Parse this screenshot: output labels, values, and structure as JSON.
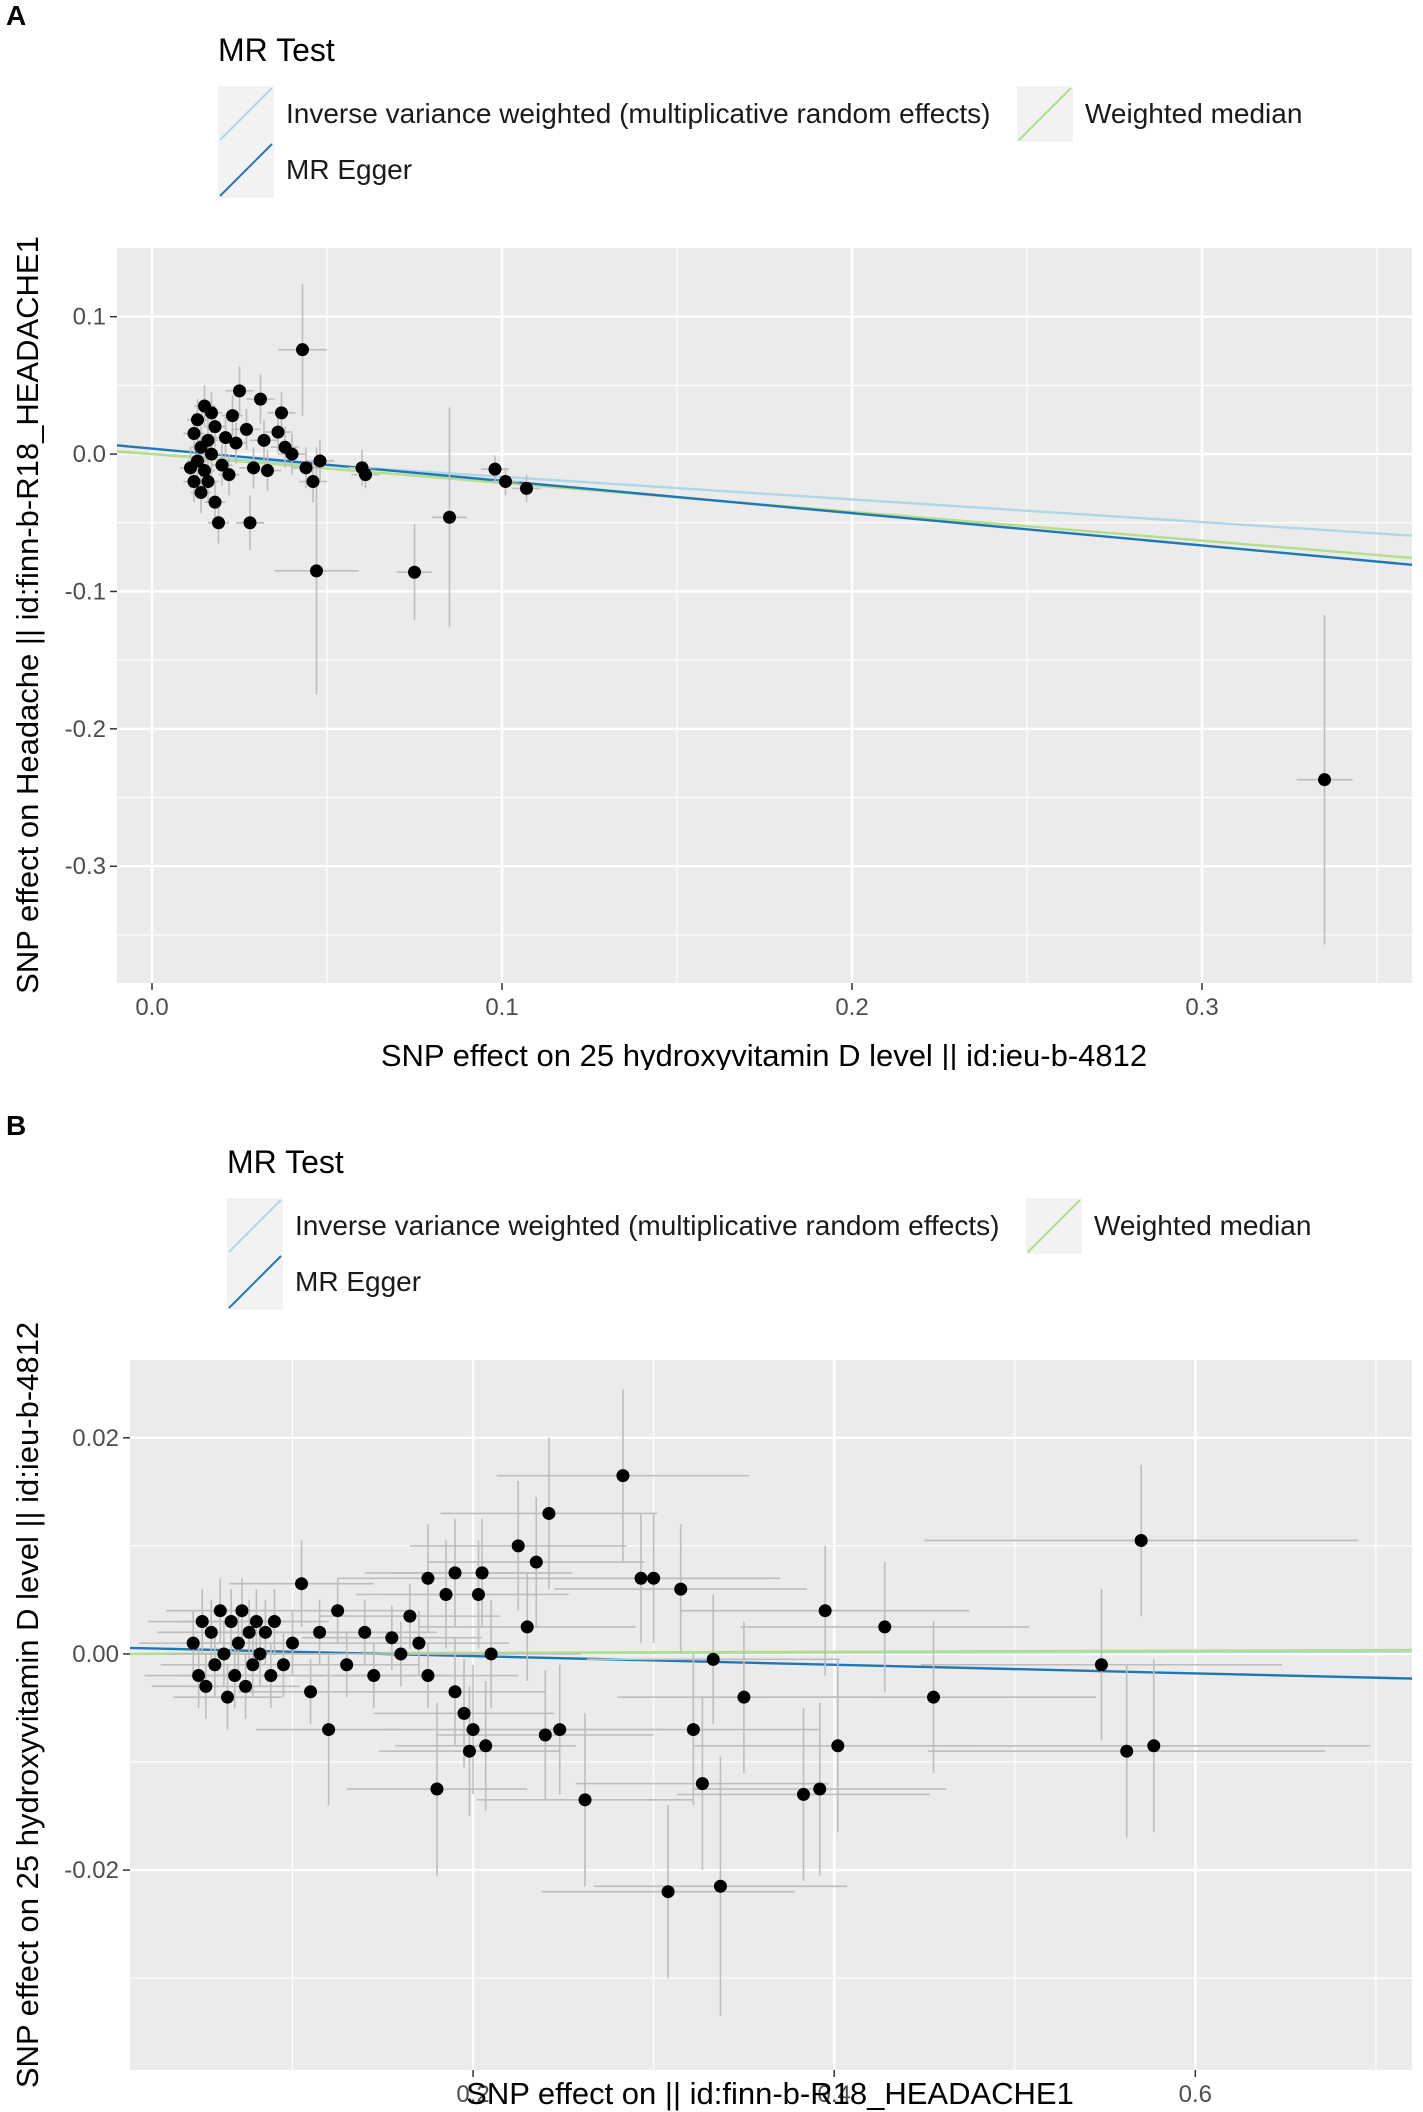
{
  "chart_data": [
    {
      "panel": "A",
      "type": "scatter",
      "legend_title": "MR Test",
      "legend": [
        {
          "label": "Inverse variance weighted (multiplicative random effects)",
          "color": "#add8e6"
        },
        {
          "label": "Weighted median",
          "color": "#b2df8a"
        },
        {
          "label": "MR Egger",
          "color": "#1f78b4"
        }
      ],
      "xlabel": "SNP effect on 25 hydroxyvitamin D level || id:ieu-b-4812",
      "ylabel": "SNP effect on Headache || id:finn-b-R18_HEADACHE1",
      "xlim": [
        -0.01,
        0.36
      ],
      "ylim": [
        -0.385,
        0.15
      ],
      "xticks": [
        0.0,
        0.1,
        0.2,
        0.3
      ],
      "xtick_labels": [
        "0.0",
        "0.1",
        "0.2",
        "0.3"
      ],
      "yticks": [
        0.1,
        0.0,
        -0.1,
        -0.2,
        -0.3
      ],
      "ytick_labels": [
        "0.1",
        "0.0",
        "-0.1",
        "-0.2",
        "-0.3"
      ],
      "lines": [
        {
          "name": "Inverse variance weighted (multiplicative random effects)",
          "intercept": 0.0,
          "slope": -0.165,
          "color": "#add8e6"
        },
        {
          "name": "Weighted median",
          "intercept": 0.0,
          "slope": -0.21,
          "color": "#b2df8a"
        },
        {
          "name": "MR Egger",
          "intercept": 0.004,
          "slope": -0.235,
          "color": "#1f78b4"
        }
      ],
      "points": [
        {
          "x": 0.011,
          "y": -0.01,
          "xe": 0.003,
          "ye": 0.015
        },
        {
          "x": 0.012,
          "y": -0.02,
          "xe": 0.003,
          "ye": 0.015
        },
        {
          "x": 0.012,
          "y": 0.015,
          "xe": 0.003,
          "ye": 0.015
        },
        {
          "x": 0.013,
          "y": -0.005,
          "xe": 0.003,
          "ye": 0.015
        },
        {
          "x": 0.013,
          "y": 0.025,
          "xe": 0.003,
          "ye": 0.015
        },
        {
          "x": 0.014,
          "y": 0.005,
          "xe": 0.003,
          "ye": 0.015
        },
        {
          "x": 0.014,
          "y": -0.028,
          "xe": 0.003,
          "ye": 0.015
        },
        {
          "x": 0.015,
          "y": 0.035,
          "xe": 0.003,
          "ye": 0.015
        },
        {
          "x": 0.015,
          "y": -0.012,
          "xe": 0.003,
          "ye": 0.015
        },
        {
          "x": 0.016,
          "y": 0.01,
          "xe": 0.003,
          "ye": 0.015
        },
        {
          "x": 0.016,
          "y": -0.02,
          "xe": 0.003,
          "ye": 0.015
        },
        {
          "x": 0.017,
          "y": 0.03,
          "xe": 0.003,
          "ye": 0.015
        },
        {
          "x": 0.017,
          "y": 0.0,
          "xe": 0.003,
          "ye": 0.015
        },
        {
          "x": 0.018,
          "y": -0.035,
          "xe": 0.003,
          "ye": 0.015
        },
        {
          "x": 0.018,
          "y": 0.02,
          "xe": 0.003,
          "ye": 0.015
        },
        {
          "x": 0.019,
          "y": -0.05,
          "xe": 0.003,
          "ye": 0.015
        },
        {
          "x": 0.02,
          "y": -0.008,
          "xe": 0.003,
          "ye": 0.015
        },
        {
          "x": 0.021,
          "y": 0.012,
          "xe": 0.003,
          "ye": 0.015
        },
        {
          "x": 0.022,
          "y": -0.015,
          "xe": 0.003,
          "ye": 0.015
        },
        {
          "x": 0.023,
          "y": 0.028,
          "xe": 0.003,
          "ye": 0.015
        },
        {
          "x": 0.024,
          "y": 0.008,
          "xe": 0.003,
          "ye": 0.015
        },
        {
          "x": 0.025,
          "y": 0.046,
          "xe": 0.004,
          "ye": 0.018
        },
        {
          "x": 0.027,
          "y": 0.018,
          "xe": 0.004,
          "ye": 0.015
        },
        {
          "x": 0.028,
          "y": -0.05,
          "xe": 0.004,
          "ye": 0.02
        },
        {
          "x": 0.029,
          "y": -0.01,
          "xe": 0.004,
          "ye": 0.015
        },
        {
          "x": 0.031,
          "y": 0.04,
          "xe": 0.004,
          "ye": 0.018
        },
        {
          "x": 0.032,
          "y": 0.01,
          "xe": 0.004,
          "ye": 0.015
        },
        {
          "x": 0.033,
          "y": -0.012,
          "xe": 0.004,
          "ye": 0.015
        },
        {
          "x": 0.036,
          "y": 0.016,
          "xe": 0.004,
          "ye": 0.015
        },
        {
          "x": 0.037,
          "y": 0.03,
          "xe": 0.004,
          "ye": 0.015
        },
        {
          "x": 0.038,
          "y": 0.005,
          "xe": 0.004,
          "ye": 0.015
        },
        {
          "x": 0.04,
          "y": 0.0,
          "xe": 0.004,
          "ye": 0.015
        },
        {
          "x": 0.043,
          "y": 0.076,
          "xe": 0.007,
          "ye": 0.048
        },
        {
          "x": 0.044,
          "y": -0.01,
          "xe": 0.004,
          "ye": 0.015
        },
        {
          "x": 0.046,
          "y": -0.02,
          "xe": 0.004,
          "ye": 0.015
        },
        {
          "x": 0.047,
          "y": -0.085,
          "xe": 0.012,
          "ye": 0.09
        },
        {
          "x": 0.048,
          "y": -0.005,
          "xe": 0.004,
          "ye": 0.015
        },
        {
          "x": 0.06,
          "y": -0.01,
          "xe": 0.004,
          "ye": 0.013
        },
        {
          "x": 0.061,
          "y": -0.015,
          "xe": 0.004,
          "ye": 0.01
        },
        {
          "x": 0.075,
          "y": -0.086,
          "xe": 0.005,
          "ye": 0.035
        },
        {
          "x": 0.085,
          "y": -0.046,
          "xe": 0.005,
          "ye": 0.08
        },
        {
          "x": 0.098,
          "y": -0.011,
          "xe": 0.004,
          "ye": 0.01
        },
        {
          "x": 0.101,
          "y": -0.02,
          "xe": 0.004,
          "ye": 0.01
        },
        {
          "x": 0.107,
          "y": -0.025,
          "xe": 0.004,
          "ye": 0.01
        },
        {
          "x": 0.335,
          "y": -0.237,
          "xe": 0.008,
          "ye": 0.12
        }
      ]
    },
    {
      "panel": "B",
      "type": "scatter",
      "legend_title": "MR Test",
      "legend": [
        {
          "label": "Inverse variance weighted (multiplicative random effects)",
          "color": "#add8e6"
        },
        {
          "label": "Weighted median",
          "color": "#b2df8a"
        },
        {
          "label": "MR Egger",
          "color": "#1f78b4"
        }
      ],
      "xlabel": "SNP effect on  || id:finn-b-R18_HEADACHE1",
      "ylabel": "SNP effect on 25 hydroxyvitamin D level || id:ieu-b-4812",
      "xlim": [
        0.01,
        0.72
      ],
      "ylim": [
        -0.0385,
        0.0272
      ],
      "xticks": [
        0.2,
        0.4,
        0.6
      ],
      "xtick_labels": [
        "0.2",
        "0.4",
        "0.6"
      ],
      "yticks": [
        0.02,
        0.0,
        -0.02
      ],
      "ytick_labels": [
        "0.02",
        "0.00",
        "-0.02"
      ],
      "lines": [
        {
          "name": "Inverse variance weighted (multiplicative random effects)",
          "intercept": 0.0,
          "slope": 0.0003,
          "color": "#add8e6"
        },
        {
          "name": "Weighted median",
          "intercept": 0.0,
          "slope": 0.0005,
          "color": "#b2df8a"
        },
        {
          "name": "MR Egger",
          "intercept": 0.0006,
          "slope": -0.004,
          "color": "#1f78b4"
        }
      ],
      "points": [
        {
          "x": 0.045,
          "y": 0.001,
          "xe": 0.03,
          "ye": 0.003
        },
        {
          "x": 0.048,
          "y": -0.002,
          "xe": 0.03,
          "ye": 0.003
        },
        {
          "x": 0.05,
          "y": 0.003,
          "xe": 0.03,
          "ye": 0.003
        },
        {
          "x": 0.052,
          "y": -0.003,
          "xe": 0.03,
          "ye": 0.003
        },
        {
          "x": 0.055,
          "y": 0.002,
          "xe": 0.03,
          "ye": 0.003
        },
        {
          "x": 0.057,
          "y": -0.001,
          "xe": 0.03,
          "ye": 0.003
        },
        {
          "x": 0.06,
          "y": 0.004,
          "xe": 0.03,
          "ye": 0.003
        },
        {
          "x": 0.062,
          "y": 0.0,
          "xe": 0.03,
          "ye": 0.003
        },
        {
          "x": 0.064,
          "y": -0.004,
          "xe": 0.03,
          "ye": 0.003
        },
        {
          "x": 0.066,
          "y": 0.003,
          "xe": 0.03,
          "ye": 0.003
        },
        {
          "x": 0.068,
          "y": -0.002,
          "xe": 0.03,
          "ye": 0.003
        },
        {
          "x": 0.07,
          "y": 0.001,
          "xe": 0.03,
          "ye": 0.003
        },
        {
          "x": 0.072,
          "y": 0.004,
          "xe": 0.03,
          "ye": 0.003
        },
        {
          "x": 0.074,
          "y": -0.003,
          "xe": 0.03,
          "ye": 0.003
        },
        {
          "x": 0.076,
          "y": 0.002,
          "xe": 0.03,
          "ye": 0.003
        },
        {
          "x": 0.078,
          "y": -0.001,
          "xe": 0.03,
          "ye": 0.003
        },
        {
          "x": 0.08,
          "y": 0.003,
          "xe": 0.03,
          "ye": 0.003
        },
        {
          "x": 0.082,
          "y": 0.0,
          "xe": 0.03,
          "ye": 0.003
        },
        {
          "x": 0.085,
          "y": 0.002,
          "xe": 0.03,
          "ye": 0.003
        },
        {
          "x": 0.088,
          "y": -0.002,
          "xe": 0.03,
          "ye": 0.003
        },
        {
          "x": 0.09,
          "y": 0.003,
          "xe": 0.03,
          "ye": 0.003
        },
        {
          "x": 0.095,
          "y": -0.001,
          "xe": 0.03,
          "ye": 0.003
        },
        {
          "x": 0.1,
          "y": 0.001,
          "xe": 0.03,
          "ye": 0.003
        },
        {
          "x": 0.105,
          "y": 0.0065,
          "xe": 0.04,
          "ye": 0.004
        },
        {
          "x": 0.11,
          "y": -0.0035,
          "xe": 0.04,
          "ye": 0.003
        },
        {
          "x": 0.115,
          "y": 0.002,
          "xe": 0.04,
          "ye": 0.003
        },
        {
          "x": 0.12,
          "y": -0.007,
          "xe": 0.04,
          "ye": 0.007
        },
        {
          "x": 0.125,
          "y": 0.004,
          "xe": 0.04,
          "ye": 0.003
        },
        {
          "x": 0.13,
          "y": -0.001,
          "xe": 0.04,
          "ye": 0.003
        },
        {
          "x": 0.14,
          "y": 0.002,
          "xe": 0.04,
          "ye": 0.003
        },
        {
          "x": 0.145,
          "y": -0.002,
          "xe": 0.04,
          "ye": 0.003
        },
        {
          "x": 0.155,
          "y": 0.0015,
          "xe": 0.05,
          "ye": 0.003
        },
        {
          "x": 0.16,
          "y": 0.0,
          "xe": 0.05,
          "ye": 0.003
        },
        {
          "x": 0.165,
          "y": 0.0035,
          "xe": 0.05,
          "ye": 0.003
        },
        {
          "x": 0.17,
          "y": 0.001,
          "xe": 0.05,
          "ye": 0.003
        },
        {
          "x": 0.175,
          "y": -0.002,
          "xe": 0.05,
          "ye": 0.003
        },
        {
          "x": 0.175,
          "y": 0.007,
          "xe": 0.05,
          "ye": 0.005
        },
        {
          "x": 0.18,
          "y": -0.0125,
          "xe": 0.05,
          "ye": 0.008
        },
        {
          "x": 0.185,
          "y": 0.0055,
          "xe": 0.05,
          "ye": 0.005
        },
        {
          "x": 0.19,
          "y": -0.0035,
          "xe": 0.05,
          "ye": 0.005
        },
        {
          "x": 0.19,
          "y": 0.0075,
          "xe": 0.05,
          "ye": 0.005
        },
        {
          "x": 0.195,
          "y": -0.0055,
          "xe": 0.05,
          "ye": 0.005
        },
        {
          "x": 0.198,
          "y": -0.009,
          "xe": 0.05,
          "ye": 0.006
        },
        {
          "x": 0.2,
          "y": -0.007,
          "xe": 0.05,
          "ye": 0.006
        },
        {
          "x": 0.203,
          "y": 0.0055,
          "xe": 0.05,
          "ye": 0.005
        },
        {
          "x": 0.205,
          "y": 0.0075,
          "xe": 0.05,
          "ye": 0.005
        },
        {
          "x": 0.207,
          "y": -0.0085,
          "xe": 0.05,
          "ye": 0.006
        },
        {
          "x": 0.21,
          "y": 0.0,
          "xe": 0.05,
          "ye": 0.005
        },
        {
          "x": 0.225,
          "y": 0.01,
          "xe": 0.06,
          "ye": 0.006
        },
        {
          "x": 0.23,
          "y": 0.0025,
          "xe": 0.06,
          "ye": 0.005
        },
        {
          "x": 0.235,
          "y": 0.0085,
          "xe": 0.06,
          "ye": 0.006
        },
        {
          "x": 0.24,
          "y": -0.0075,
          "xe": 0.06,
          "ye": 0.006
        },
        {
          "x": 0.242,
          "y": 0.013,
          "xe": 0.06,
          "ye": 0.007
        },
        {
          "x": 0.248,
          "y": -0.007,
          "xe": 0.06,
          "ye": 0.006
        },
        {
          "x": 0.262,
          "y": -0.0135,
          "xe": 0.06,
          "ye": 0.008
        },
        {
          "x": 0.283,
          "y": 0.0165,
          "xe": 0.07,
          "ye": 0.008
        },
        {
          "x": 0.293,
          "y": 0.007,
          "xe": 0.07,
          "ye": 0.006
        },
        {
          "x": 0.3,
          "y": 0.007,
          "xe": 0.07,
          "ye": 0.006
        },
        {
          "x": 0.308,
          "y": -0.022,
          "xe": 0.07,
          "ye": 0.008
        },
        {
          "x": 0.315,
          "y": 0.006,
          "xe": 0.07,
          "ye": 0.006
        },
        {
          "x": 0.322,
          "y": -0.007,
          "xe": 0.07,
          "ye": 0.007
        },
        {
          "x": 0.327,
          "y": -0.012,
          "xe": 0.07,
          "ye": 0.008
        },
        {
          "x": 0.333,
          "y": -0.0005,
          "xe": 0.07,
          "ye": 0.006
        },
        {
          "x": 0.337,
          "y": -0.0215,
          "xe": 0.07,
          "ye": 0.012
        },
        {
          "x": 0.35,
          "y": -0.004,
          "xe": 0.07,
          "ye": 0.007
        },
        {
          "x": 0.383,
          "y": -0.013,
          "xe": 0.07,
          "ye": 0.008
        },
        {
          "x": 0.392,
          "y": -0.0125,
          "xe": 0.07,
          "ye": 0.008
        },
        {
          "x": 0.395,
          "y": 0.004,
          "xe": 0.08,
          "ye": 0.006
        },
        {
          "x": 0.402,
          "y": -0.0085,
          "xe": 0.08,
          "ye": 0.008
        },
        {
          "x": 0.428,
          "y": 0.0025,
          "xe": 0.08,
          "ye": 0.006
        },
        {
          "x": 0.455,
          "y": -0.004,
          "xe": 0.09,
          "ye": 0.007
        },
        {
          "x": 0.548,
          "y": -0.001,
          "xe": 0.1,
          "ye": 0.007
        },
        {
          "x": 0.562,
          "y": -0.009,
          "xe": 0.11,
          "ye": 0.008
        },
        {
          "x": 0.57,
          "y": 0.0105,
          "xe": 0.12,
          "ye": 0.007
        },
        {
          "x": 0.577,
          "y": -0.0085,
          "xe": 0.12,
          "ye": 0.008
        }
      ]
    }
  ]
}
